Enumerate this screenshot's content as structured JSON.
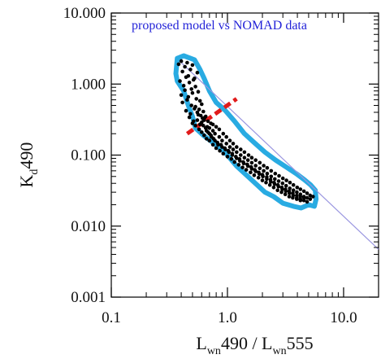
{
  "chart_data": {
    "type": "scatter",
    "title": "",
    "annotation": "proposed model vs NOMAD data",
    "xlabel": {
      "base": "L",
      "sub1": "wn",
      "mid": "490 / L",
      "sub2": "wn",
      "end": "555"
    },
    "ylabel": {
      "base": "K",
      "sub": "d",
      "end": "490"
    },
    "xscale": "log",
    "yscale": "log",
    "xlim": [
      0.1,
      20
    ],
    "ylim": [
      0.001,
      10
    ],
    "x_ticks": [
      0.1,
      1.0,
      10.0
    ],
    "x_tick_labels": [
      "0.1",
      "1.0",
      "10.0"
    ],
    "y_ticks": [
      0.001,
      0.01,
      0.1,
      1.0,
      10.0
    ],
    "y_tick_labels": [
      "0.001",
      "0.010",
      "0.100",
      "1.000",
      "10.000"
    ],
    "grid": false,
    "colors": {
      "points": "#000000",
      "envelope": "#29abe2",
      "model_line": "#9a96e0",
      "threshold_line": "#e11b1b",
      "annotation": "#2323d8"
    },
    "model_line": {
      "x": [
        0.4,
        20
      ],
      "y": [
        2.0,
        0.0047
      ]
    },
    "threshold_line": {
      "x": [
        0.45,
        1.2
      ],
      "y": [
        0.2,
        0.62
      ]
    },
    "envelope": {
      "x": [
        0.36,
        0.37,
        0.42,
        0.52,
        0.58,
        0.63,
        0.7,
        0.8,
        0.95,
        1.15,
        1.4,
        1.7,
        2.1,
        2.6,
        3.2,
        3.9,
        4.6,
        5.2,
        5.7,
        5.8,
        5.6,
        5.0,
        4.3,
        3.7,
        3.0,
        2.5,
        2.1,
        1.8,
        1.5,
        1.2,
        0.95,
        0.75,
        0.62,
        0.53,
        0.5,
        0.46,
        0.42,
        0.37
      ],
      "y": [
        1.4,
        2.3,
        2.5,
        2.2,
        1.6,
        1.2,
        0.8,
        0.55,
        0.43,
        0.3,
        0.2,
        0.15,
        0.11,
        0.085,
        0.068,
        0.055,
        0.045,
        0.038,
        0.032,
        0.024,
        0.019,
        0.02,
        0.018,
        0.019,
        0.021,
        0.026,
        0.03,
        0.038,
        0.05,
        0.07,
        0.11,
        0.15,
        0.19,
        0.24,
        0.35,
        0.5,
        0.8,
        1.1
      ]
    },
    "series": [
      {
        "x": [
          0.38,
          0.4,
          0.41,
          0.43,
          0.45,
          0.46,
          0.48,
          0.5,
          0.52,
          0.55,
          0.39,
          0.42,
          0.44,
          0.47,
          0.49,
          0.51,
          0.53,
          0.56,
          0.4,
          0.43,
          0.46,
          0.5,
          0.54,
          0.58,
          0.41,
          0.45,
          0.49,
          0.53,
          0.57,
          0.6,
          0.44,
          0.48,
          0.52,
          0.55,
          0.59,
          0.62,
          0.47,
          0.51,
          0.56,
          0.61,
          0.65,
          0.5,
          0.55,
          0.6,
          0.64,
          0.68,
          0.53,
          0.58,
          0.63,
          0.67,
          0.72,
          0.57,
          0.62,
          0.66,
          0.7,
          0.75,
          0.6,
          0.65,
          0.7,
          0.75,
          0.8,
          0.63,
          0.68,
          0.73,
          0.78,
          0.85,
          0.66,
          0.72,
          0.78,
          0.85,
          0.92,
          0.7,
          0.76,
          0.83,
          0.9,
          0.98,
          0.75,
          0.82,
          0.9,
          0.98,
          1.05,
          0.8,
          0.88,
          0.96,
          1.05,
          1.12,
          0.86,
          0.95,
          1.03,
          1.12,
          1.2,
          0.92,
          1.02,
          1.1,
          1.2,
          1.3,
          1.0,
          1.1,
          1.2,
          1.3,
          1.4,
          1.08,
          1.18,
          1.28,
          1.4,
          1.52,
          1.15,
          1.27,
          1.38,
          1.5,
          1.62,
          1.25,
          1.37,
          1.5,
          1.62,
          1.75,
          1.35,
          1.48,
          1.62,
          1.75,
          1.9,
          1.45,
          1.6,
          1.75,
          1.9,
          2.05,
          1.58,
          1.72,
          1.88,
          2.05,
          2.2,
          1.7,
          1.86,
          2.02,
          2.2,
          2.38,
          1.85,
          2.0,
          2.18,
          2.38,
          2.58,
          2.0,
          2.18,
          2.36,
          2.56,
          2.78,
          2.15,
          2.35,
          2.55,
          2.76,
          3.0,
          2.32,
          2.52,
          2.75,
          2.98,
          3.22,
          2.5,
          2.72,
          2.96,
          3.2,
          3.45,
          2.7,
          2.94,
          3.18,
          3.44,
          3.7,
          2.92,
          3.16,
          3.42,
          3.7,
          3.98,
          3.15,
          3.4,
          3.68,
          3.96,
          4.25,
          3.4,
          3.66,
          3.95,
          4.25,
          4.55,
          3.65,
          3.95,
          4.25,
          4.55,
          4.85,
          3.95,
          4.25,
          4.55,
          4.85,
          5.15,
          4.25,
          4.55,
          4.85,
          5.15,
          5.45
        ],
        "y": [
          1.9,
          2.1,
          1.5,
          1.75,
          2.0,
          1.3,
          1.6,
          1.85,
          1.2,
          1.45,
          1.1,
          0.95,
          1.25,
          1.05,
          0.85,
          1.15,
          0.92,
          0.78,
          0.7,
          0.82,
          0.66,
          0.75,
          0.62,
          0.58,
          0.55,
          0.6,
          0.5,
          0.48,
          0.44,
          0.52,
          0.42,
          0.38,
          0.45,
          0.4,
          0.36,
          0.41,
          0.34,
          0.3,
          0.37,
          0.33,
          0.35,
          0.28,
          0.31,
          0.29,
          0.34,
          0.3,
          0.26,
          0.27,
          0.31,
          0.25,
          0.28,
          0.23,
          0.26,
          0.22,
          0.24,
          0.27,
          0.21,
          0.24,
          0.2,
          0.22,
          0.25,
          0.19,
          0.21,
          0.18,
          0.2,
          0.23,
          0.17,
          0.19,
          0.16,
          0.18,
          0.2,
          0.16,
          0.17,
          0.14,
          0.16,
          0.18,
          0.14,
          0.15,
          0.13,
          0.145,
          0.16,
          0.125,
          0.14,
          0.12,
          0.13,
          0.145,
          0.115,
          0.125,
          0.11,
          0.12,
          0.13,
          0.105,
          0.115,
          0.1,
          0.11,
          0.12,
          0.095,
          0.105,
          0.09,
          0.1,
          0.11,
          0.088,
          0.095,
          0.083,
          0.092,
          0.1,
          0.08,
          0.088,
          0.076,
          0.085,
          0.092,
          0.073,
          0.08,
          0.07,
          0.078,
          0.085,
          0.067,
          0.074,
          0.064,
          0.071,
          0.078,
          0.062,
          0.068,
          0.059,
          0.065,
          0.071,
          0.057,
          0.062,
          0.054,
          0.06,
          0.066,
          0.052,
          0.057,
          0.05,
          0.055,
          0.06,
          0.048,
          0.053,
          0.046,
          0.05,
          0.055,
          0.044,
          0.049,
          0.042,
          0.046,
          0.051,
          0.041,
          0.045,
          0.039,
          0.043,
          0.047,
          0.038,
          0.041,
          0.036,
          0.04,
          0.044,
          0.035,
          0.038,
          0.033,
          0.037,
          0.041,
          0.032,
          0.035,
          0.031,
          0.034,
          0.038,
          0.03,
          0.033,
          0.029,
          0.032,
          0.035,
          0.028,
          0.031,
          0.027,
          0.03,
          0.033,
          0.026,
          0.029,
          0.025,
          0.028,
          0.031,
          0.025,
          0.027,
          0.024,
          0.026,
          0.029,
          0.024,
          0.026,
          0.023,
          0.025,
          0.027,
          0.023,
          0.025,
          0.022,
          0.024,
          0.026
        ]
      }
    ]
  }
}
